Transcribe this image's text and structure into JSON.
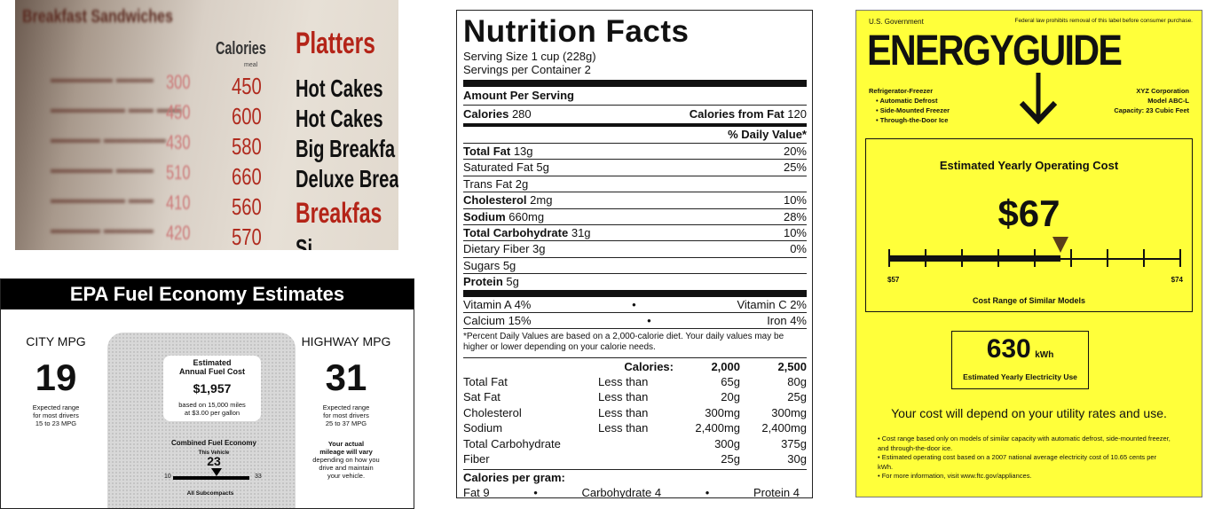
{
  "menu": {
    "column_header": "Calories",
    "column_sub": "meal",
    "faded_header": "Breakfast Sandwiches",
    "faded_numbers": [
      "300",
      "450",
      "430",
      "510",
      "410",
      "420"
    ],
    "calories": [
      "450",
      "600",
      "580",
      "660",
      "560",
      "570"
    ],
    "section": "Platters",
    "items": [
      "Hot Cakes",
      "Hot Cakes",
      "Big Breakfa",
      "Deluxe Brea",
      "Breakfas",
      "Si"
    ]
  },
  "epa": {
    "title": "EPA Fuel Economy Estimates",
    "city": {
      "label": "CITY MPG",
      "value": "19",
      "note": [
        "Expected range",
        "for most drivers",
        "15 to 23 MPG"
      ]
    },
    "highway": {
      "label": "HIGHWAY MPG",
      "value": "31",
      "note": [
        "Expected range",
        "for most drivers",
        "25 to 37 MPG"
      ]
    },
    "cost": {
      "title1": "Estimated",
      "title2": "Annual Fuel Cost",
      "value": "$1,957",
      "note1": "based on 15,000 miles",
      "note2": "at $3.00 per gallon"
    },
    "combined": {
      "label": "Combined Fuel Economy",
      "this_vehicle": "This Vehicle",
      "value": "23",
      "min": "10",
      "max": "33",
      "class": "All Subcompacts",
      "value_fraction": 0.565
    },
    "actual": [
      "Your actual",
      "mileage will vary",
      "depending on how you",
      "drive and maintain",
      "your vehicle."
    ]
  },
  "nutrition": {
    "title": "Nutrition Facts",
    "serving_size": "Serving Size 1 cup (228g)",
    "servings": "Servings per Container 2",
    "amount": "Amount Per Serving",
    "calories_label": "Calories",
    "calories": "280",
    "calories_fat_label": "Calories from Fat",
    "calories_fat": "120",
    "dv_header": "% Daily Value*",
    "rows": [
      {
        "label": "Total Fat",
        "amount": "13g",
        "dv": "20%",
        "bold": true
      },
      {
        "label": "Saturated Fat",
        "amount": "5g",
        "dv": "25%",
        "bold": false
      },
      {
        "label": "Trans Fat",
        "amount": "2g",
        "dv": "",
        "bold": false
      },
      {
        "label": "Cholesterol",
        "amount": "2mg",
        "dv": "10%",
        "bold": true
      },
      {
        "label": "Sodium",
        "amount": "660mg",
        "dv": "28%",
        "bold": true
      },
      {
        "label": "Total Carbohydrate",
        "amount": "31g",
        "dv": "10%",
        "bold": true
      },
      {
        "label": "Dietary Fiber",
        "amount": "3g",
        "dv": "0%",
        "bold": false
      },
      {
        "label": "Sugars",
        "amount": "5g",
        "dv": "",
        "bold": false
      },
      {
        "label": "Protein",
        "amount": "5g",
        "dv": "",
        "bold": true
      }
    ],
    "vitamins": [
      {
        "left": "Vitamin A 4%",
        "right": "Vitamin C 2%"
      },
      {
        "left": "Calcium 15%",
        "right": "Iron 4%"
      }
    ],
    "bullet": "•",
    "footnote": "*Percent Daily Values are based on a 2,000-calorie diet. Your daily values may be higher or lower depending on your calorie needs.",
    "table_header": [
      "",
      "Calories:",
      "2,000",
      "2,500"
    ],
    "table": [
      [
        "Total Fat",
        "Less than",
        "65g",
        "80g"
      ],
      [
        "Sat Fat",
        "Less than",
        "20g",
        "25g"
      ],
      [
        "Cholesterol",
        "Less than",
        "300mg",
        "300mg"
      ],
      [
        "Sodium",
        "Less than",
        "2,400mg",
        "2,400mg"
      ],
      [
        "Total Carbohydrate",
        "",
        "300g",
        "375g"
      ],
      [
        "Fiber",
        "",
        "25g",
        "30g"
      ]
    ],
    "per_gram_label": "Calories per gram:",
    "per_gram": [
      "Fat 9",
      "Carbohydrate 4",
      "Protein 4"
    ]
  },
  "energy": {
    "gov": "U.S. Government",
    "law": "Federal law prohibits removal of this label before consumer purchase.",
    "logo": "ENERGYGUIDE",
    "product": "Refrigerator-Freezer",
    "features": [
      "Automatic Defrost",
      "Side-Mounted Freezer",
      "Through-the-Door Ice"
    ],
    "maker": "XYZ Corporation",
    "model": "Model ABC-L",
    "capacity": "Capacity: 23 Cubic Feet",
    "cost_title": "Estimated Yearly Operating Cost",
    "cost": "$67",
    "range_min": "$57",
    "range_max": "$74",
    "range_label": "Cost Range of Similar Models",
    "cost_fraction": 0.588,
    "kwh": "630",
    "kwh_unit": "kWh",
    "kwh_label": "Estimated Yearly Electricity Use",
    "depend": "Your cost will depend on your utility rates and use.",
    "notes": [
      "Cost range based only on models of similar capacity with automatic defrost, side-mounted freezer, and through-the-door ice.",
      "Estimated operating cost based on a 2007 national average electricity cost of 10.65 cents per kWh.",
      "For more information, visit www.ftc.gov/appliances."
    ]
  }
}
